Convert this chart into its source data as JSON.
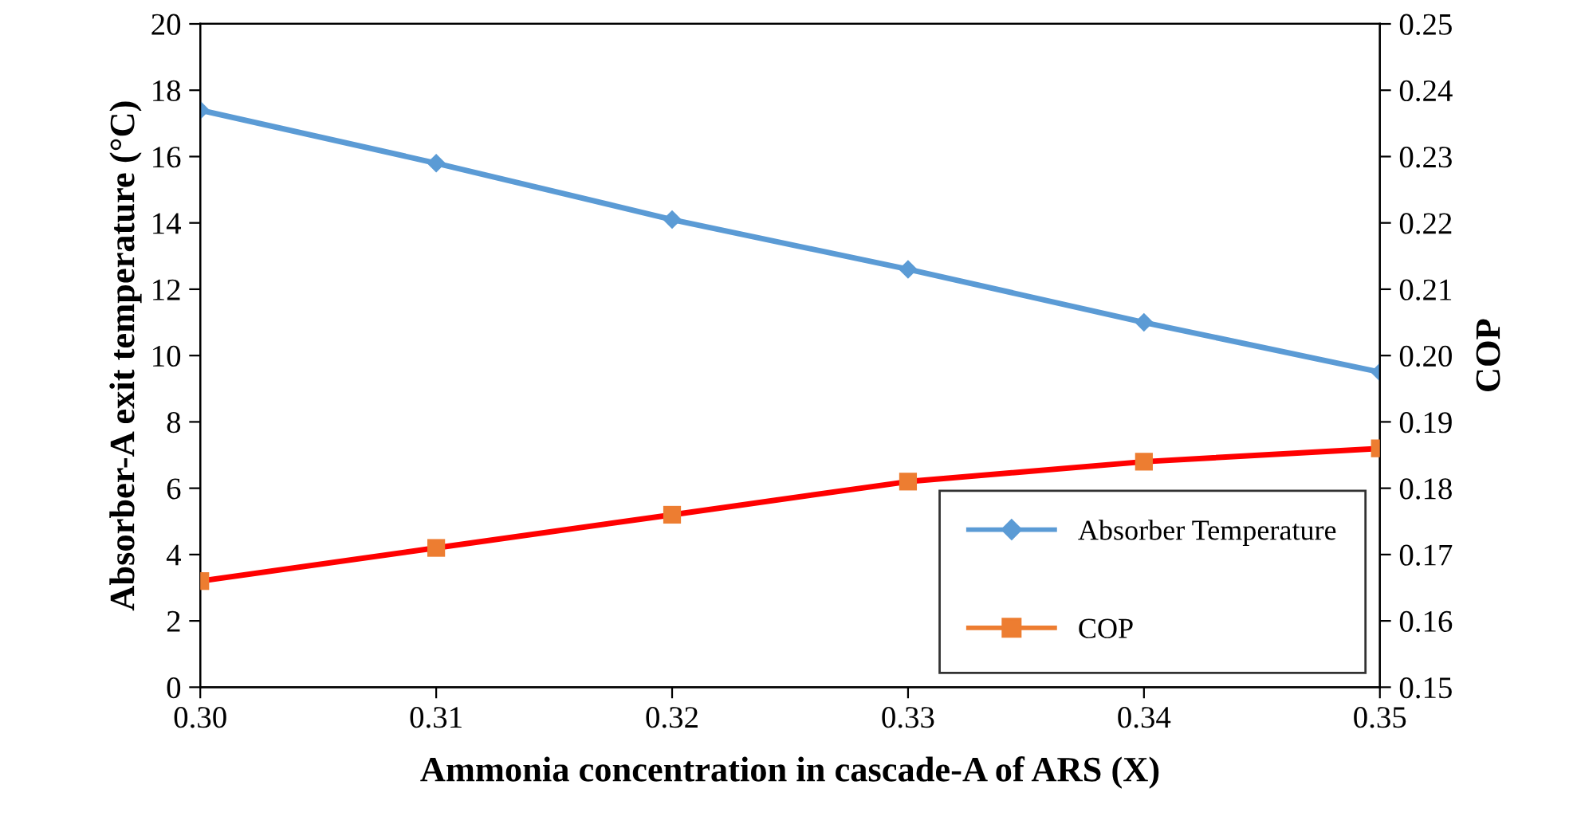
{
  "chart_data": {
    "type": "line",
    "xlabel": "Ammonia concentration in cascade-A of ARS (X)",
    "ylabel": "Absorber-A exit temperature (°C)",
    "y2label": "COP",
    "x": [
      0.3,
      0.31,
      0.32,
      0.33,
      0.34,
      0.35
    ],
    "xlim": [
      0.3,
      0.35
    ],
    "xticks": [
      {
        "value": 0.3,
        "label": "0.30"
      },
      {
        "value": 0.31,
        "label": "0.31"
      },
      {
        "value": 0.32,
        "label": "0.32"
      },
      {
        "value": 0.33,
        "label": "0.33"
      },
      {
        "value": 0.34,
        "label": "0.34"
      },
      {
        "value": 0.35,
        "label": "0.35"
      }
    ],
    "ylim": [
      0,
      20
    ],
    "yticks": [
      0,
      2,
      4,
      6,
      8,
      10,
      12,
      14,
      16,
      18,
      20
    ],
    "y2lim": [
      0.15,
      0.25
    ],
    "y2ticks": [
      {
        "value": 0.15,
        "label": "0.15"
      },
      {
        "value": 0.16,
        "label": "0.16"
      },
      {
        "value": 0.17,
        "label": "0.17"
      },
      {
        "value": 0.18,
        "label": "0.18"
      },
      {
        "value": 0.19,
        "label": "0.19"
      },
      {
        "value": 0.2,
        "label": "0.20"
      },
      {
        "value": 0.21,
        "label": "0.21"
      },
      {
        "value": 0.22,
        "label": "0.22"
      },
      {
        "value": 0.23,
        "label": "0.23"
      },
      {
        "value": 0.24,
        "label": "0.24"
      },
      {
        "value": 0.25,
        "label": "0.25"
      }
    ],
    "series": [
      {
        "name": "Absorber Temperature",
        "color": "#5b9bd5",
        "marker": "diamond",
        "values": [
          17.4,
          15.8,
          14.1,
          12.6,
          11.0,
          9.5
        ]
      },
      {
        "name": "COP",
        "axis": "y2",
        "color": "#ff0000",
        "colors": [
          "#ed7d31",
          "#ed7d31",
          "#ed7d31",
          "#ed7d31",
          "#ed7d31",
          "#ed7d31"
        ],
        "marker": "square",
        "values": [
          0.166,
          0.171,
          0.176,
          0.181,
          0.184,
          0.186
        ]
      }
    ],
    "grid": false,
    "legend": "bottom right",
    "line_style": "solid"
  }
}
